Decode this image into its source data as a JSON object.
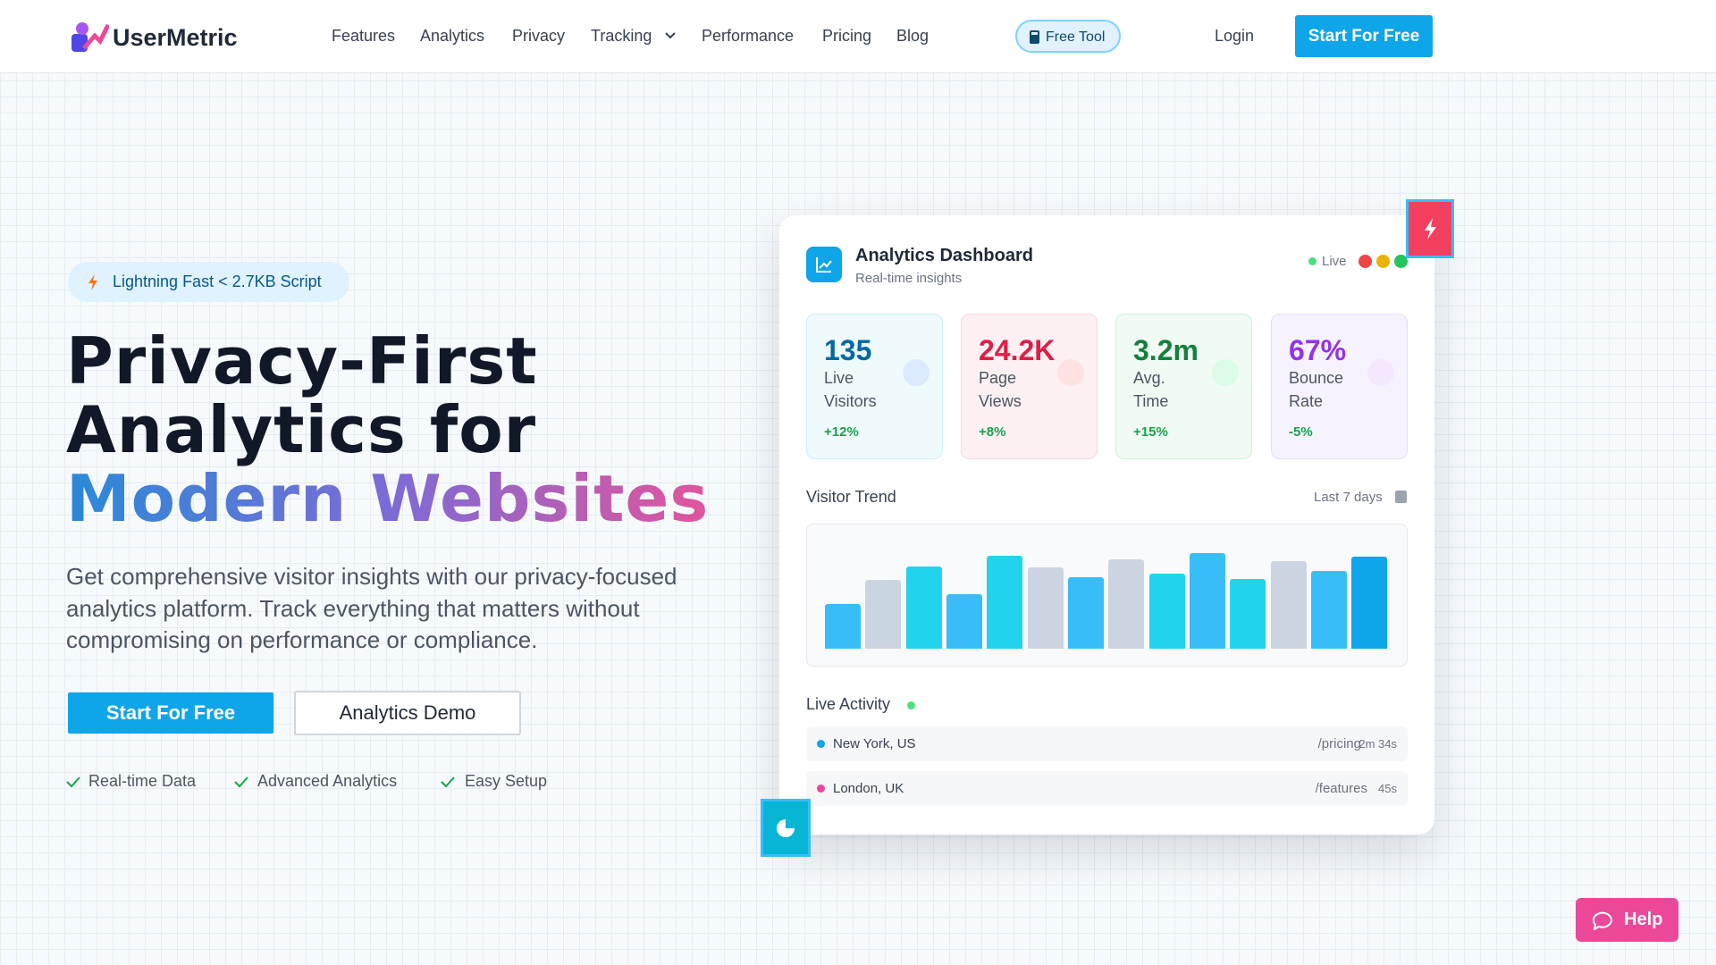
{
  "nav": {
    "brand": "UserMetric",
    "links": [
      "Features",
      "Analytics",
      "Privacy",
      "Tracking",
      "Performance",
      "Pricing",
      "Blog"
    ],
    "free_tool": "Free Tool",
    "login": "Login",
    "cta": "Start For Free"
  },
  "hero": {
    "badge": "Lightning Fast < 2.7KB Script",
    "title_line1": "Privacy-First",
    "title_line2": "Analytics for",
    "title_highlight": "Modern Websites",
    "description": "Get comprehensive visitor insights with our privacy-focused analytics platform. Track everything that matters without compromising on performance or compliance.",
    "primary_button": "Start For Free",
    "secondary_button": "Analytics Demo",
    "features": [
      "Real-time Data",
      "Advanced Analytics",
      "Easy Setup"
    ]
  },
  "dashboard": {
    "title": "Analytics Dashboard",
    "subtitle": "Real-time insights",
    "status": "Live",
    "stats": [
      {
        "value": "135",
        "label_line1": "Live",
        "label_line2": "Visitors",
        "change": "+12%"
      },
      {
        "value": "24.2K",
        "label_line1": "Page",
        "label_line2": "Views",
        "change": "+8%"
      },
      {
        "value": "3.2m",
        "label_line1": "Avg.",
        "label_line2": "Time",
        "change": "+15%"
      },
      {
        "value": "67%",
        "label_line1": "Bounce",
        "label_line2": "Rate",
        "change": "-5%"
      }
    ],
    "trend_title": "Visitor Trend",
    "trend_range": "Last 7 days",
    "activity_title": "Live Activity",
    "activity": [
      {
        "location": "New York, US",
        "page": "/pricing",
        "duration": "2m 34s"
      },
      {
        "location": "London, UK",
        "page": "/features",
        "duration": "45s"
      }
    ]
  },
  "help": "Help"
}
